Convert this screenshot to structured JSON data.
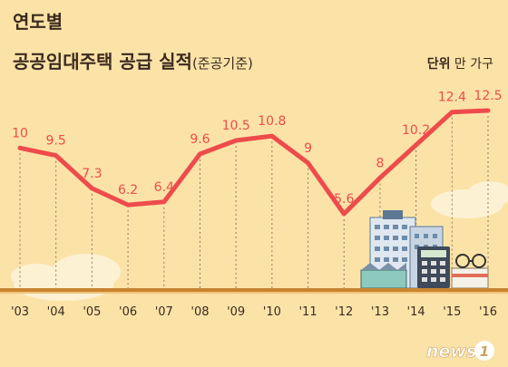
{
  "title_line1": "연도별",
  "title_line2": "공공임대주택 공급 실적",
  "title_sub": "(준공기준)",
  "unit_label": "단위",
  "unit_value": "만 가구",
  "logo_text": "news",
  "logo_mark": "1",
  "colors": {
    "background": "#fbe3a8",
    "line": "#ee4b4b",
    "text": "#3b2a1e",
    "ground": "#c9852f"
  },
  "chart_data": {
    "type": "line",
    "categories": [
      "'03",
      "'04",
      "'05",
      "'06",
      "'07",
      "'08",
      "'09",
      "'10",
      "'11",
      "'12",
      "'13",
      "'14",
      "'15",
      "'16"
    ],
    "series": [
      {
        "values": [
          10,
          9.5,
          7.3,
          6.2,
          6.4,
          9.6,
          10.5,
          10.8,
          9,
          5.6,
          8,
          10.2,
          12.4,
          12.5
        ]
      }
    ],
    "value_labels": [
      "10",
      "9.5",
      "7.3",
      "6.2",
      "6.4",
      "9.6",
      "10.5",
      "10.8",
      "9",
      "5.6",
      "8",
      "10.2",
      "12.4",
      "12.5"
    ],
    "ylim": [
      5.6,
      12.5
    ],
    "grid": true
  }
}
